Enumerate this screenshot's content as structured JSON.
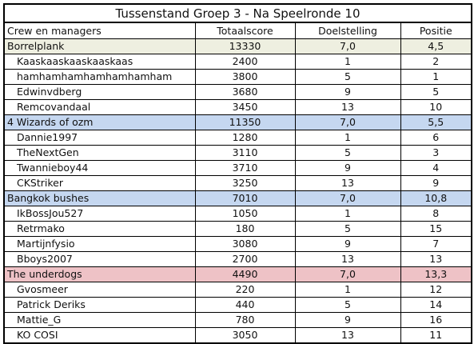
{
  "title": "Tussenstand Groep 3 - Na Speelronde 10",
  "headers": [
    "Crew en managers",
    "Totaalscore",
    "Doelstelling",
    "Positie"
  ],
  "teams": [
    {
      "name": "Borrelplank",
      "score": "13330",
      "goal": "7,0",
      "position": "4,5",
      "members": [
        {
          "name": "Kaaskaaskaaskaaskaas",
          "score": "2400",
          "goal": "1",
          "position": "2"
        },
        {
          "name": "hamhamhamhamhamhamham",
          "score": "3800",
          "goal": "5",
          "position": "1"
        },
        {
          "name": "Edwinvdberg",
          "score": "3680",
          "goal": "9",
          "position": "5"
        },
        {
          "name": "Remcovandaal",
          "score": "3450",
          "goal": "13",
          "position": "10"
        }
      ]
    },
    {
      "name": "4 Wizards of ozm",
      "score": "11350",
      "goal": "7,0",
      "position": "5,5",
      "members": [
        {
          "name": "Dannie1997",
          "score": "1280",
          "goal": "1",
          "position": "6"
        },
        {
          "name": "TheNextGen",
          "score": "3110",
          "goal": "5",
          "position": "3"
        },
        {
          "name": "Twannieboy44",
          "score": "3710",
          "goal": "9",
          "position": "4"
        },
        {
          "name": "CKStriker",
          "score": "3250",
          "goal": "13",
          "position": "9"
        }
      ]
    },
    {
      "name": "Bangkok bushes",
      "score": "7010",
      "goal": "7,0",
      "position": "10,8",
      "members": [
        {
          "name": "IkBossJou527",
          "score": "1050",
          "goal": "1",
          "position": "8"
        },
        {
          "name": "Retrmako",
          "score": "180",
          "goal": "5",
          "position": "15"
        },
        {
          "name": "Martijnfysio",
          "score": "3080",
          "goal": "9",
          "position": "7"
        },
        {
          "name": "Bboys2007",
          "score": "2700",
          "goal": "13",
          "position": "13"
        }
      ]
    },
    {
      "name": "The underdogs",
      "score": "4490",
      "goal": "7,0",
      "position": "13,3",
      "members": [
        {
          "name": "Gvosmeer",
          "score": "220",
          "goal": "1",
          "position": "12"
        },
        {
          "name": "Patrick Deriks",
          "score": "440",
          "goal": "5",
          "position": "14"
        },
        {
          "name": "Mattie_G",
          "score": "780",
          "goal": "9",
          "position": "16"
        },
        {
          "name": "KO COSI",
          "score": "3050",
          "goal": "13",
          "position": "11"
        }
      ]
    }
  ]
}
